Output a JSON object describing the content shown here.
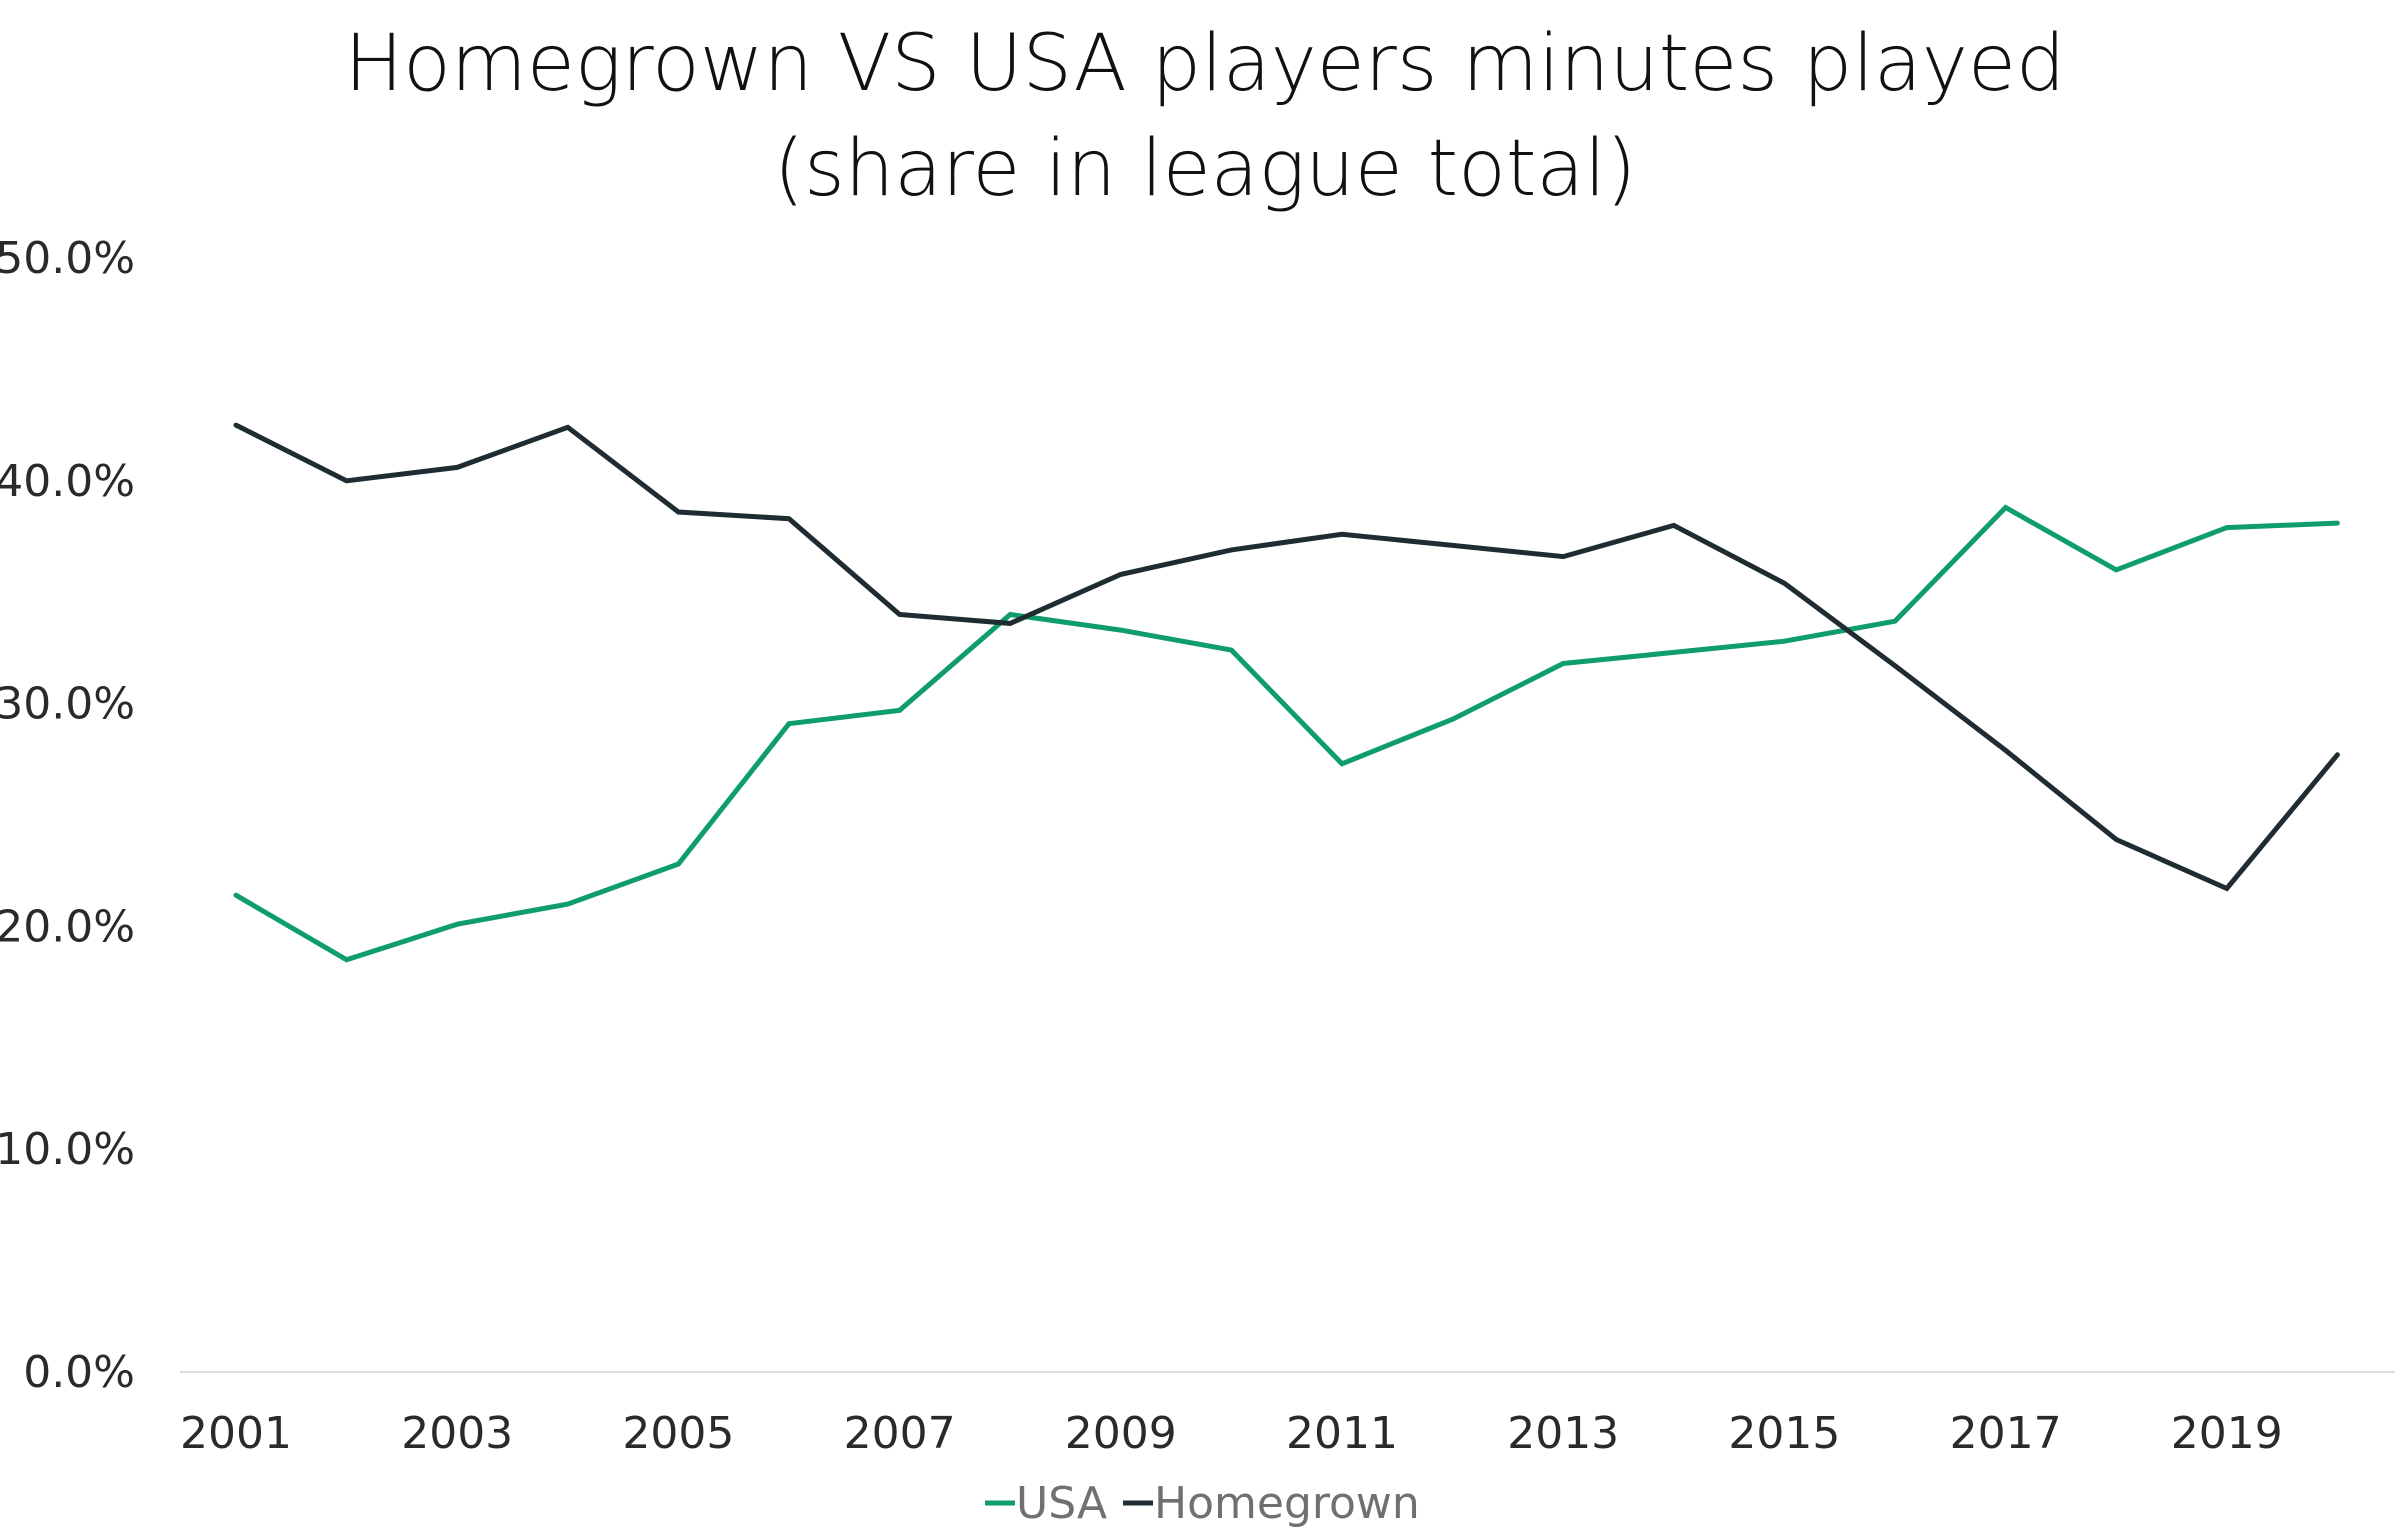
{
  "chart_data": {
    "type": "line",
    "title": "Homegrown VS USA players minutes played",
    "subtitle": "(share in league total)",
    "x": [
      2001,
      2002,
      2003,
      2004,
      2005,
      2006,
      2007,
      2008,
      2009,
      2010,
      2011,
      2012,
      2013,
      2014,
      2015,
      2016,
      2017,
      2018,
      2019,
      2020
    ],
    "x_tick_labels": [
      "2001",
      "2003",
      "2005",
      "2007",
      "2009",
      "2011",
      "2013",
      "2015",
      "2017",
      "2019"
    ],
    "y_tick_labels": [
      "0.0%",
      "10.0%",
      "20.0%",
      "30.0%",
      "40.0%",
      "50.0%"
    ],
    "ylim": [
      0,
      50
    ],
    "y_unit": "%",
    "grid": false,
    "legend_position": "bottom",
    "series": [
      {
        "name": "USA",
        "color": "#0f9d6a",
        "values": [
          21.4,
          18.5,
          20.1,
          21.0,
          22.8,
          29.1,
          29.7,
          34.0,
          33.3,
          32.4,
          27.3,
          29.3,
          31.8,
          32.3,
          32.8,
          33.7,
          38.8,
          36.0,
          37.9,
          38.1
        ]
      },
      {
        "name": "Homegrown",
        "color": "#1f2d33",
        "values": [
          42.5,
          40.0,
          40.6,
          42.4,
          38.6,
          38.3,
          34.0,
          33.6,
          35.8,
          36.9,
          37.6,
          37.1,
          36.6,
          38.0,
          35.4,
          31.7,
          27.9,
          23.9,
          21.7,
          27.7
        ]
      }
    ]
  }
}
